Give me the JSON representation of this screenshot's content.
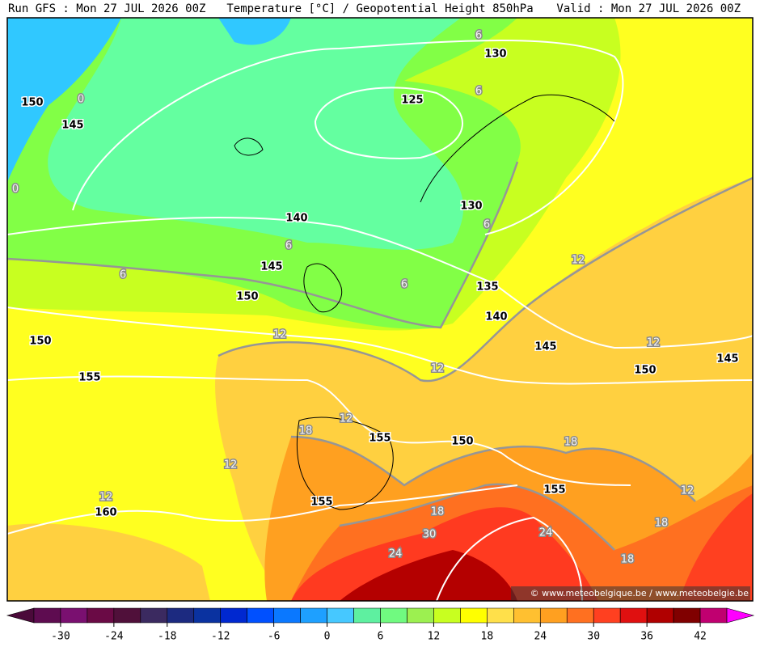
{
  "header": {
    "run": "Run GFS : Mon 27 JUL 2026 00Z",
    "title": "Temperature [°C] / Geopotential Height 850hPa",
    "valid": "Valid : Mon 27 JUL 2026 00Z"
  },
  "map": {
    "height_labels": [
      "130",
      "125",
      "150",
      "145",
      "140",
      "130",
      "145",
      "150",
      "135",
      "140",
      "150",
      "145",
      "145",
      "150",
      "155",
      "155",
      "150",
      "155",
      "155",
      "160"
    ],
    "temperature_labels": [
      "6",
      "0",
      "6",
      "0",
      "6",
      "6",
      "6",
      "6",
      "12",
      "12",
      "12",
      "12",
      "12",
      "18",
      "18",
      "12",
      "12",
      "12",
      "18",
      "30",
      "24",
      "18",
      "24",
      "18"
    ],
    "credit": "© www.meteobelgique.be / www.meteobelgie.be"
  },
  "colorbar": {
    "lim": [
      -36,
      48
    ],
    "ticks": [
      -30,
      -24,
      -18,
      -12,
      -6,
      0,
      6,
      12,
      18,
      24,
      30,
      36,
      42
    ],
    "colors": [
      "#4b0a3a",
      "#5e0c50",
      "#7a1070",
      "#6a0a45",
      "#50103a",
      "#3b2a60",
      "#1c2a80",
      "#0a32a0",
      "#0028d0",
      "#0050ff",
      "#0a78ff",
      "#1ea0ff",
      "#46c8ff",
      "#5ef0a0",
      "#70fa80",
      "#9cf050",
      "#c8ff20",
      "#ffff00",
      "#ffe04a",
      "#ffc030",
      "#ffa020",
      "#ff7020",
      "#ff4020",
      "#e01010",
      "#b00000",
      "#800000",
      "#c00070",
      "#ff00ff"
    ]
  }
}
